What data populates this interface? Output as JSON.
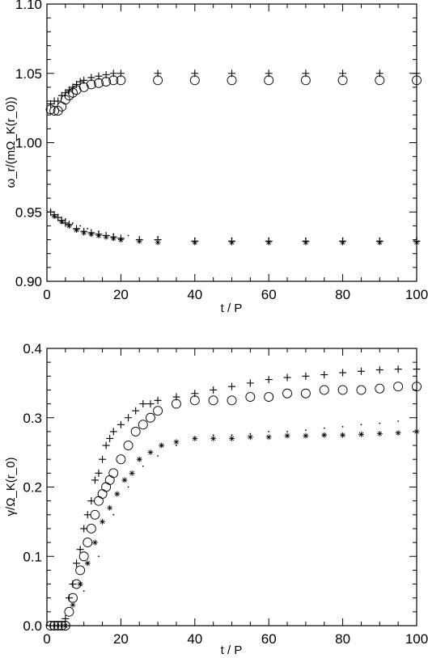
{
  "chart_data": [
    {
      "type": "scatter",
      "xlabel": "t / P",
      "ylabel": "ω_r/(mΩ_K(r_0))",
      "xlim": [
        0,
        100
      ],
      "ylim": [
        0.9,
        1.1
      ],
      "xticks": [
        "0",
        "20",
        "40",
        "60",
        "80",
        "100"
      ],
      "yticks": [
        "0.90",
        "0.95",
        "1.00",
        "1.05",
        "1.10"
      ],
      "series": [
        {
          "marker": "plus",
          "color": "#000000",
          "points": [
            [
              1,
              1.028
            ],
            [
              2,
              1.03
            ],
            [
              3,
              1.03
            ],
            [
              4,
              1.034
            ],
            [
              5,
              1.036
            ],
            [
              6,
              1.038
            ],
            [
              7,
              1.04
            ],
            [
              8,
              1.042
            ],
            [
              9,
              1.044
            ],
            [
              10,
              1.045
            ],
            [
              12,
              1.047
            ],
            [
              14,
              1.048
            ],
            [
              16,
              1.049
            ],
            [
              18,
              1.05
            ],
            [
              20,
              1.05
            ],
            [
              30,
              1.05
            ],
            [
              40,
              1.05
            ],
            [
              50,
              1.05
            ],
            [
              60,
              1.05
            ],
            [
              70,
              1.05
            ],
            [
              80,
              1.05
            ],
            [
              90,
              1.05
            ],
            [
              100,
              1.05
            ]
          ]
        },
        {
          "marker": "circle",
          "color": "#000000",
          "points": [
            [
              1,
              1.024
            ],
            [
              2,
              1.023
            ],
            [
              3,
              1.023
            ],
            [
              4,
              1.026
            ],
            [
              5,
              1.031
            ],
            [
              6,
              1.034
            ],
            [
              7,
              1.036
            ],
            [
              8,
              1.038
            ],
            [
              10,
              1.04
            ],
            [
              12,
              1.042
            ],
            [
              14,
              1.043
            ],
            [
              16,
              1.044
            ],
            [
              18,
              1.045
            ],
            [
              20,
              1.045
            ],
            [
              30,
              1.045
            ],
            [
              40,
              1.045
            ],
            [
              50,
              1.045
            ],
            [
              60,
              1.045
            ],
            [
              70,
              1.045
            ],
            [
              80,
              1.045
            ],
            [
              90,
              1.045
            ],
            [
              100,
              1.045
            ]
          ]
        },
        {
          "marker": "plus",
          "color": "#000000",
          "points": [
            [
              1,
              0.95
            ],
            [
              2,
              0.948
            ],
            [
              3,
              0.946
            ],
            [
              4,
              0.944
            ],
            [
              5,
              0.942
            ],
            [
              6,
              0.941
            ],
            [
              8,
              0.938
            ],
            [
              10,
              0.936
            ],
            [
              12,
              0.935
            ],
            [
              14,
              0.934
            ],
            [
              16,
              0.933
            ],
            [
              18,
              0.932
            ],
            [
              20,
              0.931
            ],
            [
              25,
              0.93
            ],
            [
              30,
              0.93
            ],
            [
              40,
              0.929
            ],
            [
              50,
              0.929
            ],
            [
              60,
              0.929
            ],
            [
              70,
              0.929
            ],
            [
              80,
              0.929
            ],
            [
              90,
              0.929
            ],
            [
              100,
              0.929
            ]
          ]
        },
        {
          "marker": "star",
          "color": "#000000",
          "points": [
            [
              2,
              0.947
            ],
            [
              4,
              0.943
            ],
            [
              6,
              0.94
            ],
            [
              8,
              0.937
            ],
            [
              10,
              0.935
            ],
            [
              12,
              0.934
            ],
            [
              14,
              0.933
            ],
            [
              16,
              0.932
            ],
            [
              18,
              0.931
            ],
            [
              20,
              0.93
            ],
            [
              25,
              0.929
            ],
            [
              30,
              0.928
            ],
            [
              40,
              0.928
            ],
            [
              50,
              0.928
            ],
            [
              60,
              0.928
            ],
            [
              70,
              0.928
            ],
            [
              80,
              0.928
            ],
            [
              90,
              0.928
            ],
            [
              100,
              0.928
            ]
          ]
        },
        {
          "marker": "dot",
          "color": "#000000",
          "points": [
            [
              1,
              0.951
            ],
            [
              3,
              0.948
            ],
            [
              5,
              0.945
            ],
            [
              7,
              0.942
            ],
            [
              9,
              0.94
            ],
            [
              11,
              0.938
            ],
            [
              14,
              0.936
            ],
            [
              18,
              0.934
            ],
            [
              22,
              0.933
            ],
            [
              30,
              0.932
            ],
            [
              40,
              0.931
            ],
            [
              50,
              0.931
            ],
            [
              60,
              0.931
            ],
            [
              70,
              0.931
            ],
            [
              80,
              0.931
            ],
            [
              90,
              0.931
            ],
            [
              100,
              0.931
            ]
          ]
        }
      ]
    },
    {
      "type": "scatter",
      "xlabel": "t / P",
      "ylabel": "γ/Ω_K(r_0)",
      "xlim": [
        0,
        100
      ],
      "ylim": [
        0.0,
        0.4
      ],
      "xticks": [
        "0",
        "20",
        "40",
        "60",
        "80",
        "100"
      ],
      "yticks": [
        "0.0",
        "0.1",
        "0.2",
        "0.3",
        "0.4"
      ],
      "series": [
        {
          "marker": "plus",
          "color": "#000000",
          "points": [
            [
              1,
              0.0
            ],
            [
              2,
              0.0
            ],
            [
              3,
              0.0
            ],
            [
              4,
              0.0
            ],
            [
              5,
              0.01
            ],
            [
              6,
              0.04
            ],
            [
              7,
              0.06
            ],
            [
              8,
              0.09
            ],
            [
              9,
              0.11
            ],
            [
              10,
              0.14
            ],
            [
              11,
              0.16
            ],
            [
              12,
              0.18
            ],
            [
              13,
              0.21
            ],
            [
              14,
              0.22
            ],
            [
              15,
              0.24
            ],
            [
              16,
              0.26
            ],
            [
              17,
              0.27
            ],
            [
              18,
              0.28
            ],
            [
              20,
              0.29
            ],
            [
              22,
              0.3
            ],
            [
              24,
              0.31
            ],
            [
              26,
              0.32
            ],
            [
              28,
              0.32
            ],
            [
              30,
              0.325
            ],
            [
              35,
              0.33
            ],
            [
              40,
              0.335
            ],
            [
              45,
              0.34
            ],
            [
              50,
              0.345
            ],
            [
              55,
              0.35
            ],
            [
              60,
              0.355
            ],
            [
              65,
              0.358
            ],
            [
              70,
              0.36
            ],
            [
              75,
              0.362
            ],
            [
              80,
              0.365
            ],
            [
              85,
              0.367
            ],
            [
              90,
              0.369
            ],
            [
              95,
              0.37
            ],
            [
              100,
              0.37
            ]
          ]
        },
        {
          "marker": "circle",
          "color": "#000000",
          "points": [
            [
              1,
              0.0
            ],
            [
              2,
              0.0
            ],
            [
              3,
              0.0
            ],
            [
              4,
              0.0
            ],
            [
              5,
              0.0
            ],
            [
              6,
              0.02
            ],
            [
              7,
              0.04
            ],
            [
              8,
              0.06
            ],
            [
              9,
              0.08
            ],
            [
              10,
              0.1
            ],
            [
              11,
              0.12
            ],
            [
              12,
              0.14
            ],
            [
              13,
              0.16
            ],
            [
              14,
              0.18
            ],
            [
              15,
              0.19
            ],
            [
              16,
              0.2
            ],
            [
              17,
              0.21
            ],
            [
              18,
              0.22
            ],
            [
              20,
              0.24
            ],
            [
              22,
              0.26
            ],
            [
              24,
              0.28
            ],
            [
              26,
              0.29
            ],
            [
              28,
              0.3
            ],
            [
              30,
              0.31
            ],
            [
              35,
              0.32
            ],
            [
              40,
              0.325
            ],
            [
              45,
              0.325
            ],
            [
              50,
              0.325
            ],
            [
              55,
              0.33
            ],
            [
              60,
              0.33
            ],
            [
              65,
              0.335
            ],
            [
              70,
              0.335
            ],
            [
              75,
              0.34
            ],
            [
              80,
              0.34
            ],
            [
              85,
              0.34
            ],
            [
              90,
              0.342
            ],
            [
              95,
              0.345
            ],
            [
              100,
              0.345
            ]
          ]
        },
        {
          "marker": "star",
          "color": "#000000",
          "points": [
            [
              5,
              0.0
            ],
            [
              7,
              0.03
            ],
            [
              9,
              0.06
            ],
            [
              11,
              0.09
            ],
            [
              13,
              0.12
            ],
            [
              15,
              0.15
            ],
            [
              17,
              0.17
            ],
            [
              19,
              0.19
            ],
            [
              21,
              0.21
            ],
            [
              23,
              0.22
            ],
            [
              25,
              0.24
            ],
            [
              28,
              0.25
            ],
            [
              31,
              0.26
            ],
            [
              35,
              0.265
            ],
            [
              40,
              0.27
            ],
            [
              45,
              0.27
            ],
            [
              50,
              0.27
            ],
            [
              55,
              0.272
            ],
            [
              60,
              0.272
            ],
            [
              65,
              0.274
            ],
            [
              70,
              0.274
            ],
            [
              75,
              0.275
            ],
            [
              80,
              0.275
            ],
            [
              85,
              0.276
            ],
            [
              90,
              0.277
            ],
            [
              95,
              0.278
            ],
            [
              100,
              0.28
            ]
          ]
        },
        {
          "marker": "dot",
          "color": "#000000",
          "points": [
            [
              6,
              0.0
            ],
            [
              10,
              0.05
            ],
            [
              14,
              0.1
            ],
            [
              18,
              0.16
            ],
            [
              22,
              0.2
            ],
            [
              26,
              0.23
            ],
            [
              30,
              0.245
            ],
            [
              35,
              0.26
            ],
            [
              40,
              0.27
            ],
            [
              45,
              0.275
            ],
            [
              50,
              0.275
            ],
            [
              55,
              0.277
            ],
            [
              60,
              0.28
            ],
            [
              65,
              0.28
            ],
            [
              70,
              0.282
            ],
            [
              75,
              0.285
            ],
            [
              80,
              0.287
            ],
            [
              85,
              0.29
            ],
            [
              90,
              0.292
            ],
            [
              95,
              0.295
            ],
            [
              100,
              0.3
            ]
          ]
        }
      ]
    }
  ]
}
